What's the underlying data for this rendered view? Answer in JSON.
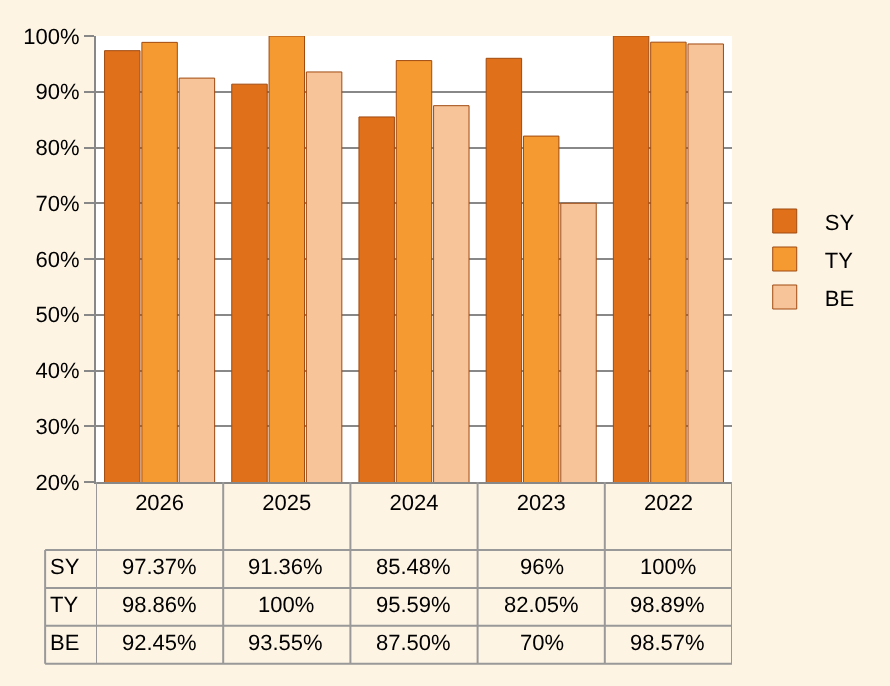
{
  "chart_data": {
    "type": "bar",
    "categories": [
      "2026",
      "2025",
      "2024",
      "2023",
      "2022"
    ],
    "series": [
      {
        "name": "SY",
        "color": "#e0701a",
        "values": [
          97.37,
          91.36,
          85.48,
          96,
          100
        ],
        "value_labels": [
          "97.37%",
          "91.36%",
          "85.48%",
          "96%",
          "100%"
        ]
      },
      {
        "name": "TY",
        "color": "#f59a30",
        "values": [
          98.86,
          100,
          95.59,
          82.05,
          98.89
        ],
        "value_labels": [
          "98.86%",
          "100%",
          "95.59%",
          "82.05%",
          "98.89%"
        ]
      },
      {
        "name": "BE",
        "color": "#f7c49a",
        "values": [
          92.45,
          93.55,
          87.5,
          70,
          98.57
        ],
        "value_labels": [
          "92.45%",
          "93.55%",
          "87.50%",
          "70%",
          "98.57%"
        ]
      }
    ],
    "ylim": [
      20,
      100
    ],
    "yticks": [
      {
        "value": 20,
        "label": "20%"
      },
      {
        "value": 30,
        "label": "30%"
      },
      {
        "value": 40,
        "label": "40%"
      },
      {
        "value": 50,
        "label": "50%"
      },
      {
        "value": 60,
        "label": "60%"
      },
      {
        "value": 70,
        "label": "70%"
      },
      {
        "value": 80,
        "label": "80%"
      },
      {
        "value": 90,
        "label": "90%"
      },
      {
        "value": 100,
        "label": "100%"
      }
    ],
    "grid": "y",
    "legend": "right"
  }
}
